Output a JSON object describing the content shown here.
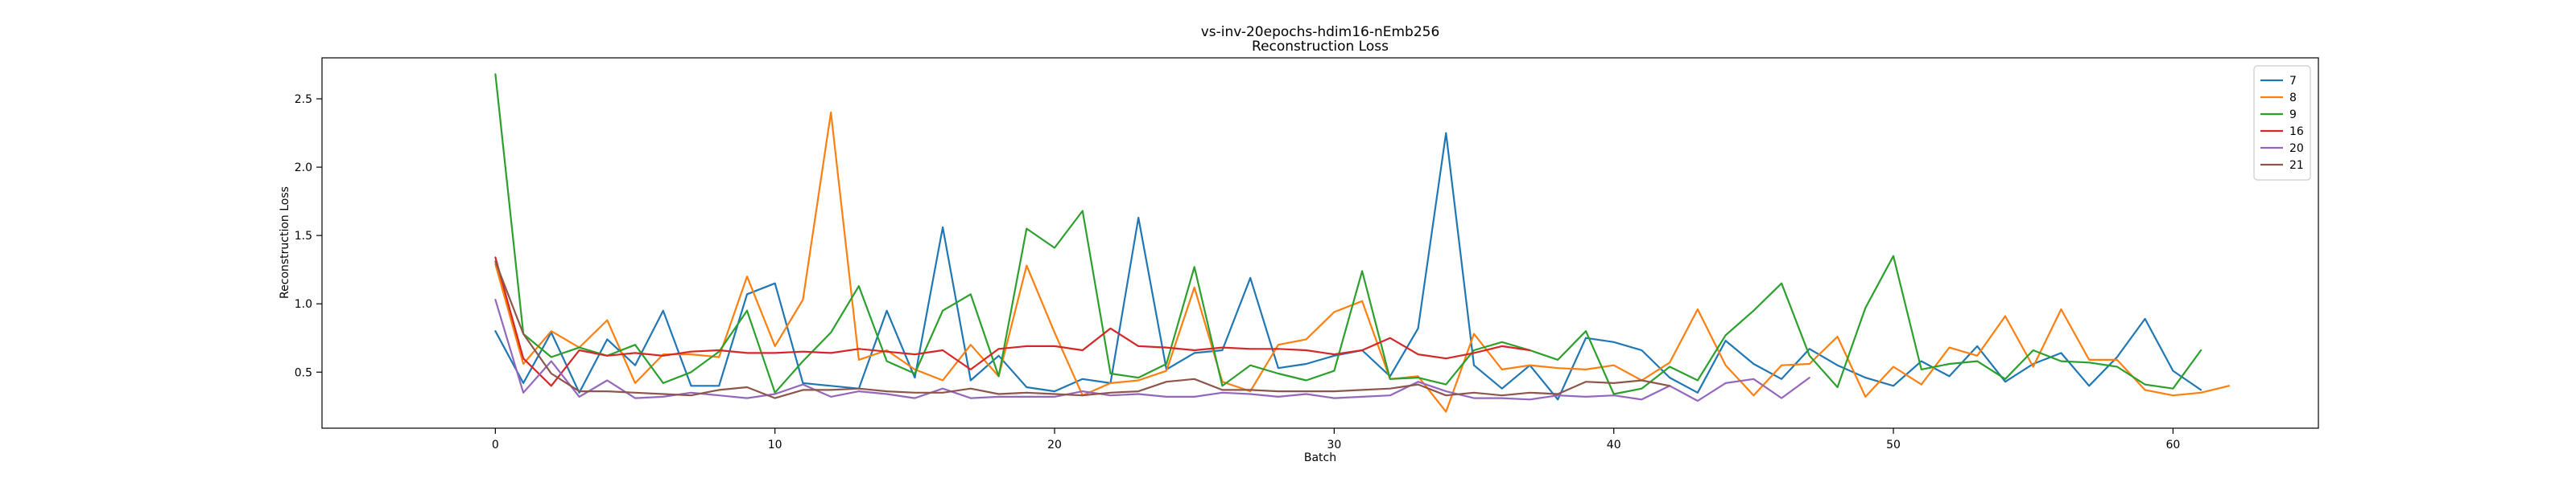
{
  "chart_data": {
    "type": "line",
    "title": "vs-inv-20epochs-hdim16-nEmb256",
    "subtitle": "Reconstruction Loss",
    "xlabel": "Batch",
    "ylabel": "Reconstruction Loss",
    "xlim": [
      -6.2,
      65.2
    ],
    "ylim": [
      0.09,
      2.8
    ],
    "xticks": [
      0,
      10,
      20,
      30,
      40,
      50,
      60
    ],
    "yticks": [
      0.5,
      1.0,
      1.5,
      2.0,
      2.5
    ],
    "xtick_labels": [
      "0",
      "10",
      "20",
      "30",
      "40",
      "50",
      "60"
    ],
    "ytick_labels": [
      "0.5",
      "1.0",
      "1.5",
      "2.0",
      "2.5"
    ],
    "grid": false,
    "legend_position": "top-right",
    "series": [
      {
        "name": "7",
        "color": "#1f77b4",
        "values": [
          0.8,
          0.42,
          0.79,
          0.35,
          0.74,
          0.55,
          0.95,
          0.4,
          0.4,
          1.07,
          1.15,
          0.42,
          0.4,
          0.38,
          0.95,
          0.46,
          1.56,
          0.44,
          0.62,
          0.39,
          0.36,
          0.45,
          0.42,
          1.63,
          0.52,
          0.64,
          0.66,
          1.19,
          0.53,
          0.56,
          0.62,
          0.66,
          0.47,
          0.82,
          2.25,
          0.55,
          0.38,
          0.55,
          0.3,
          0.75,
          0.72,
          0.66,
          0.46,
          0.35,
          0.73,
          0.56,
          0.45,
          0.67,
          0.55,
          0.46,
          0.4,
          0.58,
          0.47,
          0.69,
          0.43,
          0.56,
          0.64,
          0.4,
          0.61,
          0.89,
          0.51,
          0.37
        ]
      },
      {
        "name": "8",
        "color": "#ff7f0e",
        "values": [
          1.29,
          0.56,
          0.8,
          0.68,
          0.88,
          0.42,
          0.63,
          0.63,
          0.61,
          1.2,
          0.69,
          1.03,
          2.4,
          0.59,
          0.66,
          0.52,
          0.44,
          0.7,
          0.47,
          1.28,
          0.79,
          0.33,
          0.42,
          0.44,
          0.51,
          1.12,
          0.43,
          0.36,
          0.7,
          0.74,
          0.94,
          1.02,
          0.45,
          0.47,
          0.21,
          0.78,
          0.52,
          0.55,
          0.53,
          0.52,
          0.55,
          0.44,
          0.57,
          0.96,
          0.55,
          0.33,
          0.55,
          0.56,
          0.76,
          0.32,
          0.54,
          0.41,
          0.68,
          0.62,
          0.91,
          0.54,
          0.96,
          0.59,
          0.59,
          0.37,
          0.33,
          0.35,
          0.4
        ]
      },
      {
        "name": "9",
        "color": "#2ca02c",
        "values": [
          2.68,
          0.78,
          0.61,
          0.68,
          0.62,
          0.7,
          0.42,
          0.5,
          0.65,
          0.95,
          0.35,
          0.58,
          0.79,
          1.13,
          0.58,
          0.49,
          0.95,
          1.07,
          0.47,
          1.55,
          1.41,
          1.68,
          0.49,
          0.46,
          0.56,
          1.27,
          0.4,
          0.55,
          0.49,
          0.44,
          0.51,
          1.24,
          0.45,
          0.46,
          0.41,
          0.66,
          0.72,
          0.66,
          0.59,
          0.8,
          0.34,
          0.38,
          0.54,
          0.44,
          0.77,
          0.95,
          1.15,
          0.62,
          0.39,
          0.97,
          1.35,
          0.52,
          0.56,
          0.58,
          0.45,
          0.66,
          0.58,
          0.57,
          0.54,
          0.41,
          0.38,
          0.66
        ]
      },
      {
        "name": "16",
        "color": "#d62728",
        "values": [
          1.34,
          0.6,
          0.4,
          0.66,
          0.62,
          0.64,
          0.62,
          0.65,
          0.66,
          0.64,
          0.64,
          0.65,
          0.64,
          0.67,
          0.65,
          0.63,
          0.66,
          0.52,
          0.67,
          0.69,
          0.69,
          0.66,
          0.82,
          0.69,
          0.68,
          0.66,
          0.68,
          0.67,
          0.67,
          0.66,
          0.63,
          0.66,
          0.75,
          0.63,
          0.6,
          0.64,
          0.69,
          0.66
        ]
      },
      {
        "name": "20",
        "color": "#9467bd",
        "values": [
          1.03,
          0.35,
          0.58,
          0.32,
          0.44,
          0.31,
          0.32,
          0.35,
          0.33,
          0.31,
          0.34,
          0.41,
          0.32,
          0.36,
          0.34,
          0.31,
          0.38,
          0.31,
          0.32,
          0.32,
          0.32,
          0.36,
          0.33,
          0.34,
          0.32,
          0.32,
          0.35,
          0.34,
          0.32,
          0.34,
          0.31,
          0.32,
          0.33,
          0.43,
          0.36,
          0.31,
          0.31,
          0.3,
          0.33,
          0.32,
          0.33,
          0.3,
          0.4,
          0.29,
          0.42,
          0.45,
          0.31,
          0.46
        ]
      },
      {
        "name": "21",
        "color": "#8c564b",
        "values": [
          1.31,
          0.78,
          0.49,
          0.36,
          0.36,
          0.35,
          0.34,
          0.33,
          0.37,
          0.39,
          0.31,
          0.37,
          0.37,
          0.38,
          0.36,
          0.35,
          0.35,
          0.38,
          0.34,
          0.35,
          0.34,
          0.33,
          0.35,
          0.36,
          0.43,
          0.45,
          0.37,
          0.37,
          0.36,
          0.36,
          0.36,
          0.37,
          0.38,
          0.41,
          0.33,
          0.35,
          0.33,
          0.35,
          0.34,
          0.43,
          0.42,
          0.44,
          0.4
        ]
      }
    ]
  }
}
